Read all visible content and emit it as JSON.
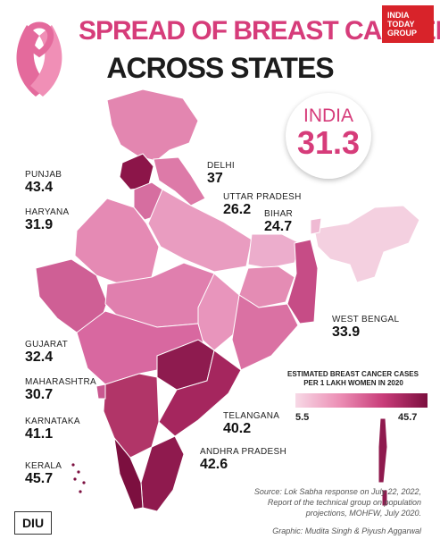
{
  "title_line1": "SPREAD OF BREAST CANCER",
  "title_line2": "ACROSS STATES",
  "brand": {
    "line1": "INDIA",
    "line2": "TODAY",
    "line3": "GROUP"
  },
  "national": {
    "label": "INDIA",
    "value": "31.3"
  },
  "states": [
    {
      "name": "PUNJAB",
      "value": "43.4"
    },
    {
      "name": "HARYANA",
      "value": "31.9"
    },
    {
      "name": "DELHI",
      "value": "37"
    },
    {
      "name": "UTTAR PRADESH",
      "value": "26.2"
    },
    {
      "name": "BIHAR",
      "value": "24.7"
    },
    {
      "name": "WEST BENGAL",
      "value": "33.9"
    },
    {
      "name": "GUJARAT",
      "value": "32.4"
    },
    {
      "name": "MAHARASHTRA",
      "value": "30.7"
    },
    {
      "name": "KARNATAKA",
      "value": "41.1"
    },
    {
      "name": "KERALA",
      "value": "45.7"
    },
    {
      "name": "TELANGANA",
      "value": "40.2"
    },
    {
      "name": "ANDHRA PRADESH",
      "value": "42.6"
    }
  ],
  "legend": {
    "title_line1": "ESTIMATED BREAST CANCER CASES",
    "title_line2": "PER 1 LAKH WOMEN IN 2020",
    "min": "5.5",
    "max": "45.7"
  },
  "source": {
    "line1": "Source: Lok Sabha response on July 22, 2022,",
    "line2": "Report of the technical group on population",
    "line3": "projections, MOHFW, July 2020.",
    "credit": "Graphic: Mudita Singh & Piyush Aggarwal"
  },
  "logo_text": "DIU",
  "colors": {
    "accent": "#d63c7a",
    "ribbon": "#e46a9c",
    "scale_low": "#f7d9e6",
    "scale_high": "#7c0f3f"
  }
}
